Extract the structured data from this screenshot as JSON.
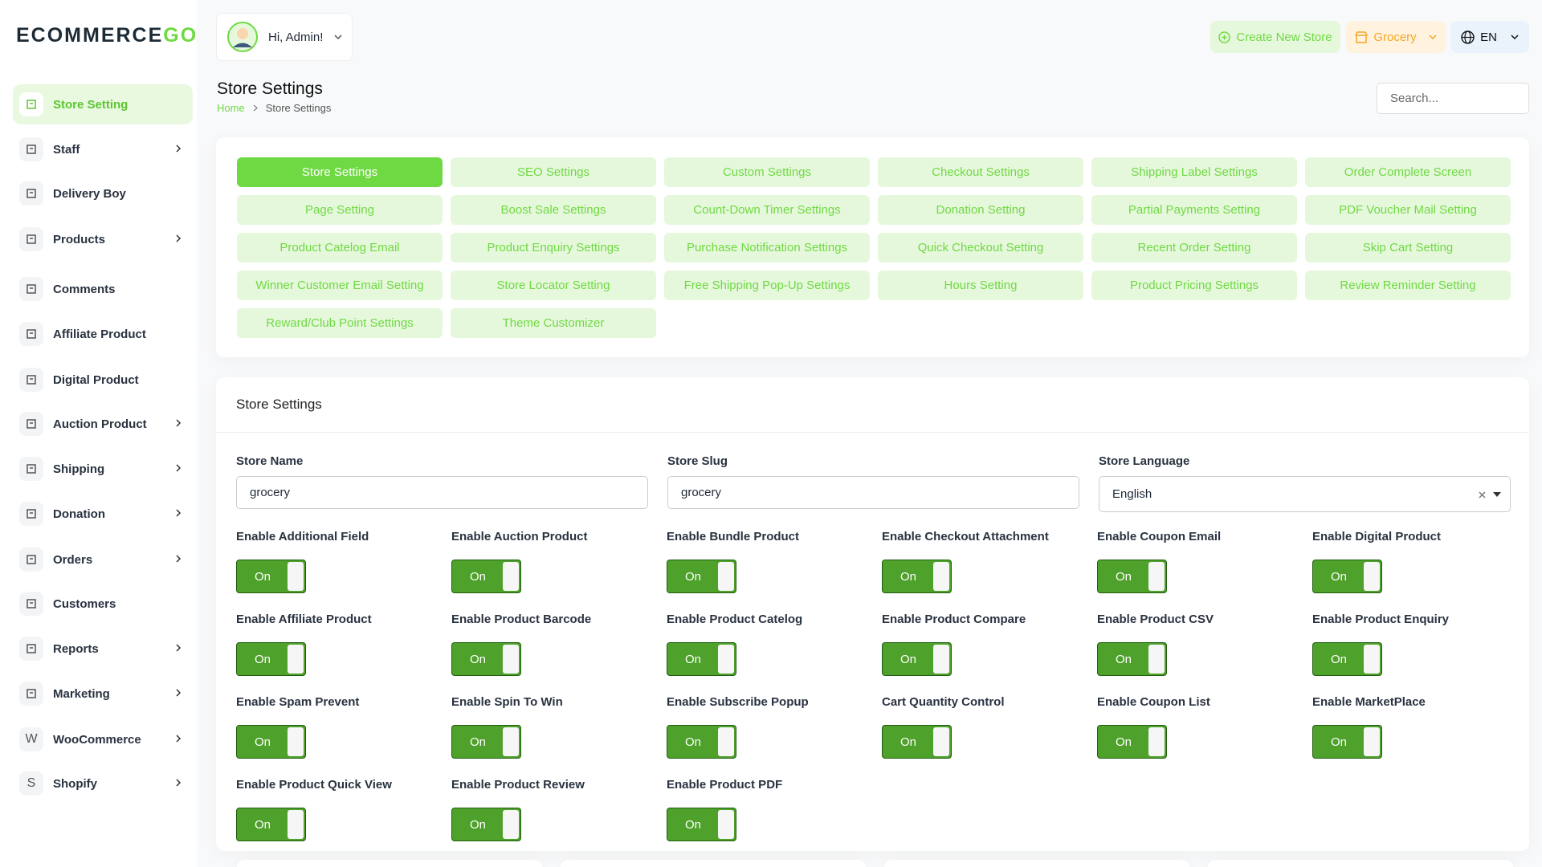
{
  "logo": {
    "text": "ECOMMERCE",
    "accent": "GO"
  },
  "sidebar": [
    {
      "label": "Store Setting",
      "submenu": false
    },
    {
      "label": "Staff",
      "submenu": true
    },
    {
      "label": "Delivery Boy",
      "submenu": false
    },
    {
      "label": "Products",
      "submenu": true
    },
    {
      "label": "Comments",
      "submenu": false
    },
    {
      "label": "Affiliate Product",
      "submenu": false
    },
    {
      "label": "Digital Product",
      "submenu": false
    },
    {
      "label": "Auction Product",
      "submenu": true
    },
    {
      "label": "Shipping",
      "submenu": true
    },
    {
      "label": "Donation",
      "submenu": true
    },
    {
      "label": "Orders",
      "submenu": true
    },
    {
      "label": "Customers",
      "submenu": false
    },
    {
      "label": "Reports",
      "submenu": true
    },
    {
      "label": "Marketing",
      "submenu": true
    },
    {
      "label": "WooCommerce",
      "submenu": true,
      "icon": "W"
    },
    {
      "label": "Shopify",
      "submenu": true,
      "icon": "S"
    }
  ],
  "header": {
    "greeting": "Hi, Admin!",
    "create_store": "Create New Store",
    "store": "Grocery",
    "language": "EN",
    "title": "Store Settings",
    "breadcrumb": [
      "Home",
      "Store Settings"
    ],
    "search": "Search..."
  },
  "tabs": [
    "Store Settings",
    "SEO Settings",
    "Custom Settings",
    "Checkout Settings",
    "Shipping Label Settings",
    "Order Complete Screen",
    "Page Setting",
    "Boost Sale Settings",
    "Count-Down Timer Settings",
    "Donation Setting",
    "Partial Payments Setting",
    "PDF Voucher Mail Setting",
    "Product Catelog Email",
    "Product Enquiry Settings",
    "Purchase Notification Settings",
    "Quick Checkout Setting",
    "Recent Order Setting",
    "Skip Cart Setting",
    "Winner Customer Email Setting",
    "Store Locator Setting",
    "Free Shipping Pop-Up Settings",
    "Hours Setting",
    "Product Pricing Settings",
    "Review Reminder Setting",
    "Reward/Club Point Settings",
    "Theme Customizer"
  ],
  "panel": {
    "title": "Store Settings",
    "fields": [
      {
        "label": "Store Name",
        "value": "grocery"
      },
      {
        "label": "Store Slug",
        "value": "grocery"
      },
      {
        "label": "Store Language",
        "value": "English"
      }
    ],
    "toggles": [
      {
        "label": "Enable Additional Field",
        "state": "On"
      },
      {
        "label": "Enable Auction Product",
        "state": "On"
      },
      {
        "label": "Enable Bundle Product",
        "state": "On"
      },
      {
        "label": "Enable Checkout Attachment",
        "state": "On"
      },
      {
        "label": "Enable Coupon Email",
        "state": "On"
      },
      {
        "label": "Enable Digital Product",
        "state": "On"
      },
      {
        "label": "Enable Affiliate Product",
        "state": "On"
      },
      {
        "label": "Enable Product Barcode",
        "state": "On"
      },
      {
        "label": "Enable Product Catelog",
        "state": "On"
      },
      {
        "label": "Enable Product Compare",
        "state": "On"
      },
      {
        "label": "Enable Product CSV",
        "state": "On"
      },
      {
        "label": "Enable Product Enquiry",
        "state": "On"
      },
      {
        "label": "Enable Spam Prevent",
        "state": "On"
      },
      {
        "label": "Enable Spin To Win",
        "state": "On"
      },
      {
        "label": "Enable Subscribe Popup",
        "state": "On"
      },
      {
        "label": "Cart Quantity Control",
        "state": "On"
      },
      {
        "label": "Enable Coupon List",
        "state": "On"
      },
      {
        "label": "Enable MarketPlace",
        "state": "On"
      },
      {
        "label": "Enable Product Quick View",
        "state": "On"
      },
      {
        "label": "Enable Product Review",
        "state": "On"
      },
      {
        "label": "Enable Product PDF",
        "state": "On"
      }
    ]
  }
}
